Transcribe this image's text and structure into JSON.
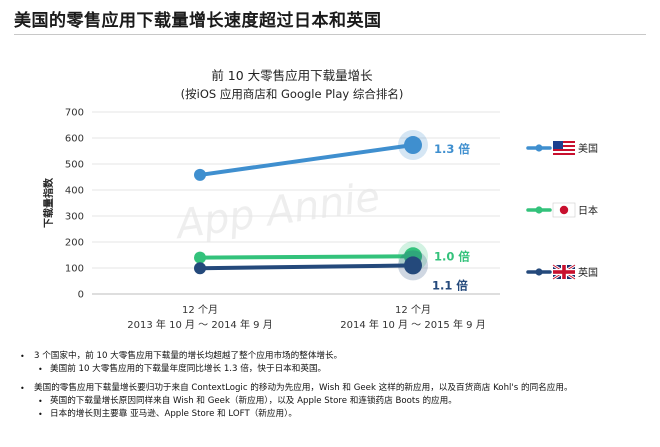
{
  "headline": "美国的零售应用下载量增长速度超过日本和英国",
  "chart_data": {
    "type": "line",
    "title": "前 10 大零售应用下载量增长",
    "subtitle": "(按iOS 应用商店和 Google Play 综合排名)",
    "ylabel": "下载量指数",
    "xlabel": "",
    "ylim": [
      0,
      700
    ],
    "yticks": [
      0,
      100,
      200,
      300,
      400,
      500,
      600,
      700
    ],
    "grid": true,
    "categories": [
      {
        "line1": "12 个月",
        "line2": "2013 年 10 月 ～ 2014 年 9 月"
      },
      {
        "line1": "12 个月",
        "line2": "2014 年 10 月 ～ 2015 年 9 月"
      }
    ],
    "series": [
      {
        "name": "美国",
        "flag": "us",
        "color": "#3f8fcf",
        "values": [
          458,
          573
        ],
        "growth_label": "1.3 倍"
      },
      {
        "name": "日本",
        "flag": "jp",
        "color": "#33c27b",
        "values": [
          140,
          145
        ],
        "growth_label": "1.0 倍"
      },
      {
        "name": "英国",
        "flag": "uk",
        "color": "#24497b",
        "values": [
          99,
          110
        ],
        "growth_label": "1.1 倍"
      }
    ],
    "legend_position": "right",
    "watermark": "App Annie"
  },
  "notes": [
    {
      "text": "3 个国家中，前 10 大零售应用下载量的增长均超越了整个应用市场的整体增长。",
      "subs": [
        "美国前 10 大零售应用的下载量年度同比增长 1.3 倍，快于日本和英国。"
      ]
    },
    {
      "text": "美国的零售应用下载量增长要归功于来自 ContextLogic 的移动为先应用，Wish 和 Geek 这样的新应用，以及百货商店 Kohl's 的同名应用。",
      "subs": [
        "英国的下载量增长原因同样来自 Wish 和 Geek（新应用），以及 Apple Store 和连锁药店 Boots 的应用。",
        "日本的增长则主要靠 亚马逊、Apple Store 和 LOFT（新应用）。"
      ]
    }
  ]
}
